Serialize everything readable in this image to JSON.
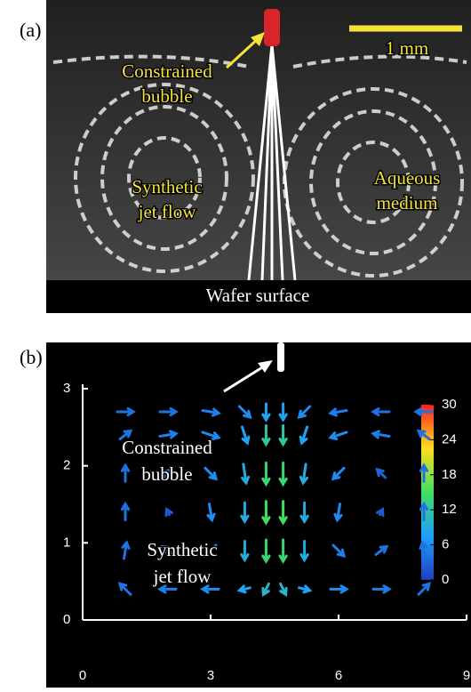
{
  "panel_a": {
    "label": "(a)",
    "bubble": [
      "Constrained",
      "bubble"
    ],
    "jet": [
      "Synthetic",
      "jet flow"
    ],
    "medium": [
      "Aqueous",
      "medium"
    ],
    "scale_bar": "1 mm",
    "surface": "Wafer surface"
  },
  "chart_data": {
    "type": "quiver",
    "label": "(b)",
    "bubble": [
      "Constrained",
      "bubble"
    ],
    "jet": [
      "Synthetic",
      "jet flow"
    ],
    "xlim": [
      0,
      9
    ],
    "xticks": [
      0,
      3,
      6,
      9
    ],
    "ylim": [
      0,
      3
    ],
    "yticks": [
      0,
      1,
      2,
      3
    ],
    "clim": [
      0,
      30
    ],
    "cticks": [
      0,
      6,
      12,
      18,
      24,
      30
    ],
    "x": [
      1,
      2,
      3,
      3.8,
      4.3,
      4.7,
      5.2,
      6,
      7,
      8,
      1,
      2,
      3,
      3.8,
      4.3,
      4.7,
      5.2,
      6,
      7,
      8,
      1,
      2,
      3,
      3.8,
      4.3,
      4.7,
      5.2,
      6,
      7,
      8,
      1,
      2,
      3,
      3.8,
      4.3,
      4.7,
      5.2,
      6,
      7,
      8,
      1,
      2,
      3,
      3.8,
      4.3,
      4.7,
      5.2,
      6,
      7,
      8,
      1,
      2,
      3,
      3.8,
      4.3,
      4.7,
      5.2,
      6,
      7,
      8
    ],
    "y": [
      2.7,
      2.7,
      2.7,
      2.7,
      2.7,
      2.7,
      2.7,
      2.7,
      2.7,
      2.7,
      2.4,
      2.4,
      2.4,
      2.4,
      2.4,
      2.4,
      2.4,
      2.4,
      2.4,
      2.4,
      1.9,
      1.9,
      1.9,
      1.9,
      1.9,
      1.9,
      1.9,
      1.9,
      1.9,
      1.9,
      1.4,
      1.4,
      1.4,
      1.4,
      1.4,
      1.4,
      1.4,
      1.4,
      1.4,
      1.4,
      0.9,
      0.9,
      0.9,
      0.9,
      0.9,
      0.9,
      0.9,
      0.9,
      0.9,
      0.9,
      0.4,
      0.4,
      0.4,
      0.4,
      0.4,
      0.4,
      0.4,
      0.4,
      0.4,
      0.4
    ],
    "u": [
      0.3,
      0.3,
      0.3,
      0.2,
      0,
      0,
      -0.2,
      -0.3,
      -0.3,
      -0.3,
      0.2,
      0.3,
      0.3,
      0.1,
      0,
      0,
      -0.1,
      -0.3,
      -0.3,
      -0.2,
      0,
      0.15,
      0.2,
      0.05,
      0,
      0,
      -0.05,
      -0.2,
      -0.15,
      0,
      0,
      -0.05,
      0.05,
      0,
      0,
      0,
      0,
      -0.05,
      0.05,
      0,
      0.05,
      -0.2,
      -0.2,
      0,
      0,
      0,
      0,
      0.2,
      0.2,
      -0.05,
      -0.2,
      -0.3,
      -0.3,
      -0.2,
      -0.1,
      0.1,
      0.2,
      0.3,
      0.3,
      0.2
    ],
    "v": [
      0,
      0,
      -0.05,
      -0.2,
      -0.3,
      -0.3,
      -0.2,
      -0.05,
      0,
      0,
      0.15,
      0.05,
      -0.1,
      -0.3,
      -0.35,
      -0.35,
      -0.3,
      -0.1,
      0.05,
      0.15,
      0.3,
      0.15,
      -0.2,
      -0.35,
      -0.4,
      -0.4,
      -0.35,
      -0.2,
      0.15,
      0.3,
      0.3,
      0.1,
      -0.3,
      -0.35,
      -0.4,
      -0.4,
      -0.35,
      -0.3,
      0.1,
      0.3,
      0.3,
      0.15,
      -0.2,
      -0.35,
      -0.4,
      -0.4,
      -0.35,
      -0.2,
      0.15,
      0.3,
      0.2,
      0,
      0,
      -0.05,
      -0.2,
      -0.2,
      -0.05,
      0,
      0,
      0.2
    ],
    "speed": [
      4,
      4,
      5,
      6,
      8,
      8,
      6,
      5,
      4,
      4,
      4,
      5,
      6,
      8,
      12,
      12,
      8,
      6,
      5,
      4,
      4,
      3,
      6,
      9,
      14,
      14,
      9,
      6,
      3,
      4,
      4,
      2,
      6,
      9,
      15,
      15,
      9,
      6,
      2,
      4,
      4,
      4,
      5,
      9,
      14,
      14,
      9,
      5,
      4,
      4,
      4,
      5,
      6,
      8,
      10,
      10,
      8,
      6,
      5,
      4
    ]
  }
}
